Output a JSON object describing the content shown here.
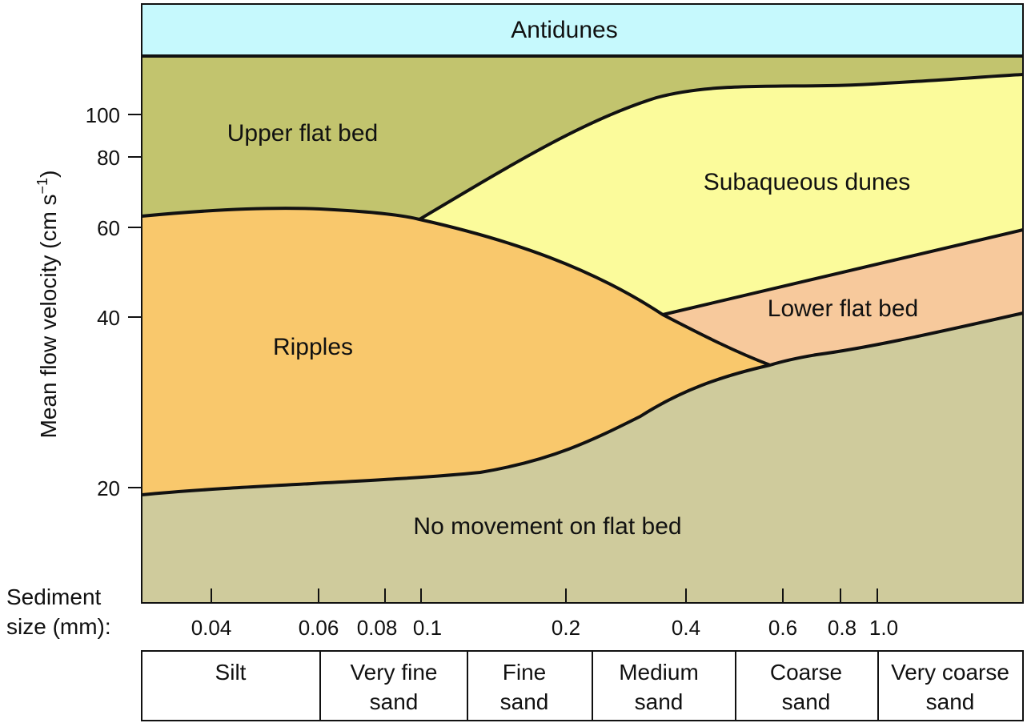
{
  "chart_data": {
    "type": "diagram",
    "y_axis": {
      "label": "Mean flow velocity (cm s",
      "label_superscript": "−1",
      "label_suffix": ")",
      "scale": "log",
      "ticks": [
        "100",
        "80",
        "60",
        "40",
        "20"
      ]
    },
    "x_axis": {
      "label_lines": [
        "Sediment",
        "size (mm):"
      ],
      "scale": "log",
      "ticks": [
        "0.04",
        "0.06",
        "0.08",
        "0.1",
        "0.2",
        "0.4",
        "0.6",
        "0.8",
        "1.0"
      ]
    },
    "regions": {
      "antidunes": "Antidunes",
      "upper_flat_bed": "Upper flat bed",
      "subaqueous_dunes": "Subaqueous dunes",
      "ripples": "Ripples",
      "lower_flat_bed": "Lower flat bed",
      "no_movement": "No movement on flat bed"
    },
    "size_classes": [
      [
        "Silt"
      ],
      [
        "Very fine",
        "sand"
      ],
      [
        "Fine",
        "sand"
      ],
      [
        "Medium",
        "sand"
      ],
      [
        "Coarse",
        "sand"
      ],
      [
        "Very coarse",
        "sand"
      ]
    ],
    "colors": {
      "antidunes": "#c6f9fd",
      "upper_flat_bed": "#c2c46e",
      "subaqueous_dunes": "#fbfb9b",
      "ripples": "#f9c86c",
      "lower_flat_bed": "#f7c99c",
      "no_movement": "#cfcb9c"
    }
  }
}
